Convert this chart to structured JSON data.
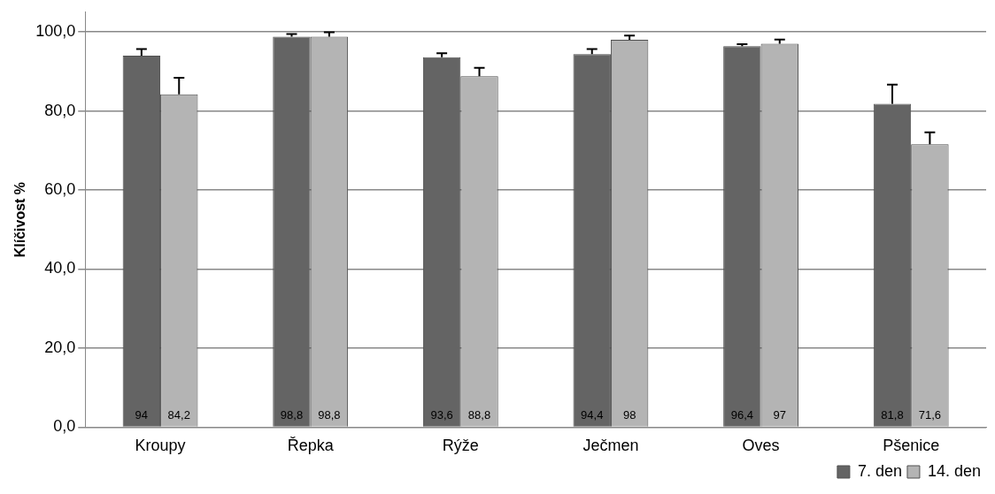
{
  "chart_data": {
    "type": "bar",
    "ylabel": "Klíčivost %",
    "categories": [
      "Kroupy",
      "Řepka",
      "Rýže",
      "Ječmen",
      "Oves",
      "Pšenice"
    ],
    "series": [
      {
        "name": "7. den",
        "color": "#646464",
        "values": [
          94,
          98.8,
          93.6,
          94.4,
          96.4,
          81.8
        ],
        "value_labels": [
          "94",
          "98,8",
          "93,6",
          "94,4",
          "96,4",
          "81,8"
        ],
        "errors": [
          [
            94,
            95.7
          ],
          [
            98.8,
            99.5
          ],
          [
            93.6,
            94.6
          ],
          [
            94.4,
            95.7
          ],
          [
            96.4,
            96.9
          ],
          [
            81.8,
            86.7
          ]
        ]
      },
      {
        "name": "14. den",
        "color": "#b4b4b4",
        "values": [
          84.2,
          98.8,
          88.8,
          98,
          97,
          71.6
        ],
        "value_labels": [
          "84,2",
          "98,8",
          "88,8",
          "98",
          "97",
          "71,6"
        ],
        "errors": [
          [
            84.2,
            88.4
          ],
          [
            98.8,
            99.9
          ],
          [
            88.8,
            90.9
          ],
          [
            98,
            99.1
          ],
          [
            97,
            98.1
          ],
          [
            71.6,
            74.6
          ]
        ]
      }
    ],
    "ylim": [
      0,
      105
    ],
    "yticks": [
      {
        "value": 0,
        "label": "0,0"
      },
      {
        "value": 20,
        "label": "20,0"
      },
      {
        "value": 40,
        "label": "40,0"
      },
      {
        "value": 60,
        "label": "60,0"
      },
      {
        "value": 80,
        "label": "80,0"
      },
      {
        "value": 100,
        "label": "100,0"
      }
    ],
    "grid": "y",
    "legend": "bottom right"
  }
}
